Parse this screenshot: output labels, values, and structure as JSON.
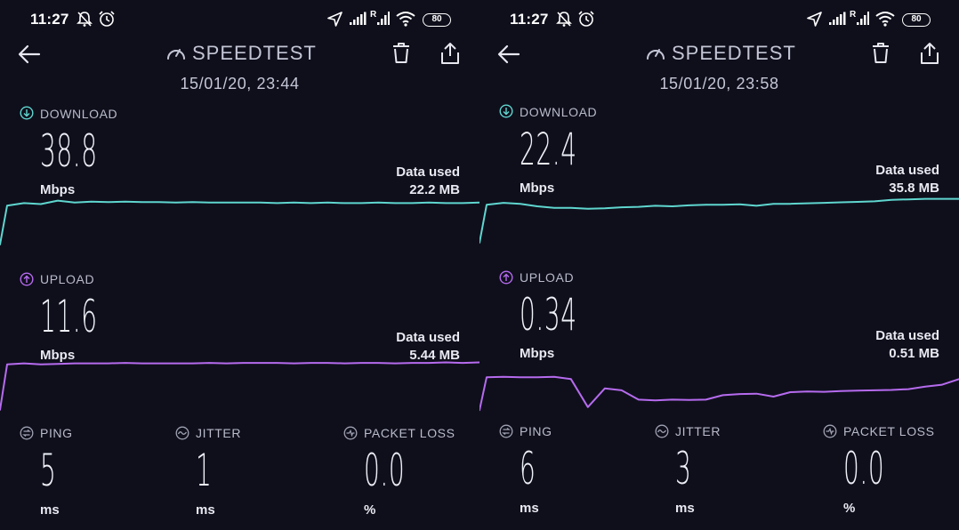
{
  "colors": {
    "background": "#0f0f1c",
    "download": "#5fd6cf",
    "upload": "#b66bee",
    "label": "#b9bbcb"
  },
  "screens": [
    {
      "status": {
        "time": "11:27",
        "battery": "80",
        "icons": [
          "alarm-off-icon",
          "alarm-clock-icon",
          "location-arrow-icon",
          "signal-icon",
          "signal-roaming-icon",
          "wifi-icon",
          "battery-icon"
        ]
      },
      "header": {
        "title": "SPEEDTEST",
        "datetime": "15/01/20, 23:44"
      },
      "download": {
        "label": "DOWNLOAD",
        "value": "38.8",
        "unit": "Mbps",
        "data_used_label": "Data used",
        "data_used_value": "22.2 MB",
        "graph": [
          0.02,
          0.8,
          0.85,
          0.83,
          0.9,
          0.86,
          0.88,
          0.87,
          0.88,
          0.87,
          0.87,
          0.86,
          0.87,
          0.86,
          0.86,
          0.86,
          0.86,
          0.85,
          0.86,
          0.85,
          0.86,
          0.85,
          0.85,
          0.86,
          0.85,
          0.85,
          0.86,
          0.85,
          0.85,
          0.86
        ]
      },
      "upload": {
        "label": "UPLOAD",
        "value": "11.6",
        "unit": "Mbps",
        "data_used_label": "Data used",
        "data_used_value": "5.44 MB",
        "graph": [
          0.02,
          0.9,
          0.92,
          0.9,
          0.91,
          0.92,
          0.92,
          0.92,
          0.93,
          0.92,
          0.92,
          0.92,
          0.92,
          0.93,
          0.92,
          0.93,
          0.93,
          0.93,
          0.92,
          0.93,
          0.93,
          0.92,
          0.93,
          0.93,
          0.92,
          0.93,
          0.93,
          0.94,
          0.93,
          0.94
        ]
      },
      "ping": {
        "label": "PING",
        "value": "5",
        "unit": "ms"
      },
      "jitter": {
        "label": "JITTER",
        "value": "1",
        "unit": "ms"
      },
      "packet_loss": {
        "label": "PACKET LOSS",
        "value": "0.0",
        "unit": "%"
      }
    },
    {
      "status": {
        "time": "11:27",
        "battery": "80",
        "icons": [
          "alarm-off-icon",
          "alarm-clock-icon",
          "location-arrow-icon",
          "signal-icon",
          "signal-roaming-icon",
          "wifi-icon",
          "battery-icon"
        ]
      },
      "header": {
        "title": "SPEEDTEST",
        "datetime": "15/01/20, 23:58"
      },
      "download": {
        "label": "DOWNLOAD",
        "value": "22.4",
        "unit": "Mbps",
        "data_used_label": "Data used",
        "data_used_value": "35.8 MB",
        "graph": [
          0.02,
          0.78,
          0.82,
          0.8,
          0.75,
          0.72,
          0.72,
          0.7,
          0.71,
          0.73,
          0.74,
          0.76,
          0.75,
          0.77,
          0.78,
          0.78,
          0.79,
          0.76,
          0.8,
          0.8,
          0.81,
          0.82,
          0.83,
          0.84,
          0.85,
          0.88,
          0.89,
          0.9,
          0.9,
          0.9
        ]
      },
      "upload": {
        "label": "UPLOAD",
        "value": "0.34",
        "unit": "Mbps",
        "data_used_label": "Data used",
        "data_used_value": "0.51 MB",
        "graph": [
          0.02,
          0.9,
          0.91,
          0.9,
          0.9,
          0.91,
          0.85,
          0.1,
          0.6,
          0.55,
          0.3,
          0.28,
          0.3,
          0.29,
          0.3,
          0.42,
          0.45,
          0.46,
          0.38,
          0.5,
          0.52,
          0.51,
          0.53,
          0.54,
          0.55,
          0.56,
          0.58,
          0.65,
          0.7,
          0.85
        ]
      },
      "ping": {
        "label": "PING",
        "value": "6",
        "unit": "ms"
      },
      "jitter": {
        "label": "JITTER",
        "value": "3",
        "unit": "ms"
      },
      "packet_loss": {
        "label": "PACKET LOSS",
        "value": "0.0",
        "unit": "%"
      }
    }
  ]
}
